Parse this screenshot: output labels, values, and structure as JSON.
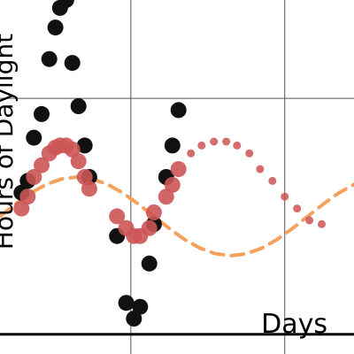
{
  "chart_data": {
    "type": "scatter",
    "title": "",
    "xlabel": "Days",
    "ylabel": "Hours of Daylight",
    "grid": true,
    "legend": "none",
    "xlim": [
      -15,
      215
    ],
    "ylim": [
      -3.5,
      5.5
    ],
    "series": [
      {
        "style": "large-black-dots",
        "color": "#111111",
        "x": [
          -1,
          3,
          7,
          12,
          17,
          21,
          24,
          28,
          32,
          36,
          40,
          43,
          61,
          67,
          72,
          76,
          82,
          85,
          93,
          97,
          101
        ],
        "y": [
          0.6,
          0.9,
          2.0,
          2.6,
          4.0,
          4.8,
          5.3,
          5.5,
          3.9,
          2.8,
          1.8,
          1.0,
          -0.5,
          -2.2,
          -2.6,
          -2.3,
          -1.2,
          -0.2,
          1.0,
          1.8,
          2.7
        ]
      },
      {
        "style": "medium-red-dots",
        "color": "#cc5555",
        "x": [
          -1,
          3,
          7,
          12,
          17,
          21,
          24,
          28,
          32,
          36,
          40,
          43,
          61,
          67,
          72,
          76,
          82,
          85,
          93,
          97,
          101,
          109,
          116,
          124,
          132,
          139,
          147,
          154,
          162,
          170,
          178,
          186,
          194
        ],
        "y": [
          0.2,
          0.5,
          1.0,
          1.3,
          1.6,
          1.75,
          1.8,
          1.8,
          1.7,
          1.4,
          1.0,
          0.7,
          0.0,
          -0.3,
          -0.5,
          -0.5,
          -0.3,
          0.1,
          0.5,
          0.8,
          1.2,
          1.6,
          1.8,
          1.9,
          1.9,
          1.8,
          1.6,
          1.2,
          0.9,
          0.5,
          0.2,
          -0.1,
          -0.2
        ]
      },
      {
        "style": "dashed-orange-line",
        "color": "#f3a15c",
        "x": [
          -15,
          -5,
          5,
          15,
          25,
          35,
          45,
          55,
          65,
          75,
          85,
          95,
          105,
          115,
          125,
          135,
          145,
          155,
          165,
          175,
          185,
          195,
          205,
          215
        ],
        "y": [
          0.0,
          0.31,
          0.59,
          0.81,
          0.95,
          1.0,
          0.95,
          0.81,
          0.59,
          0.31,
          0.0,
          -0.31,
          -0.59,
          -0.81,
          -0.95,
          -1.0,
          -0.95,
          -0.81,
          -0.59,
          -0.31,
          0.0,
          0.31,
          0.59,
          0.81
        ]
      }
    ]
  }
}
